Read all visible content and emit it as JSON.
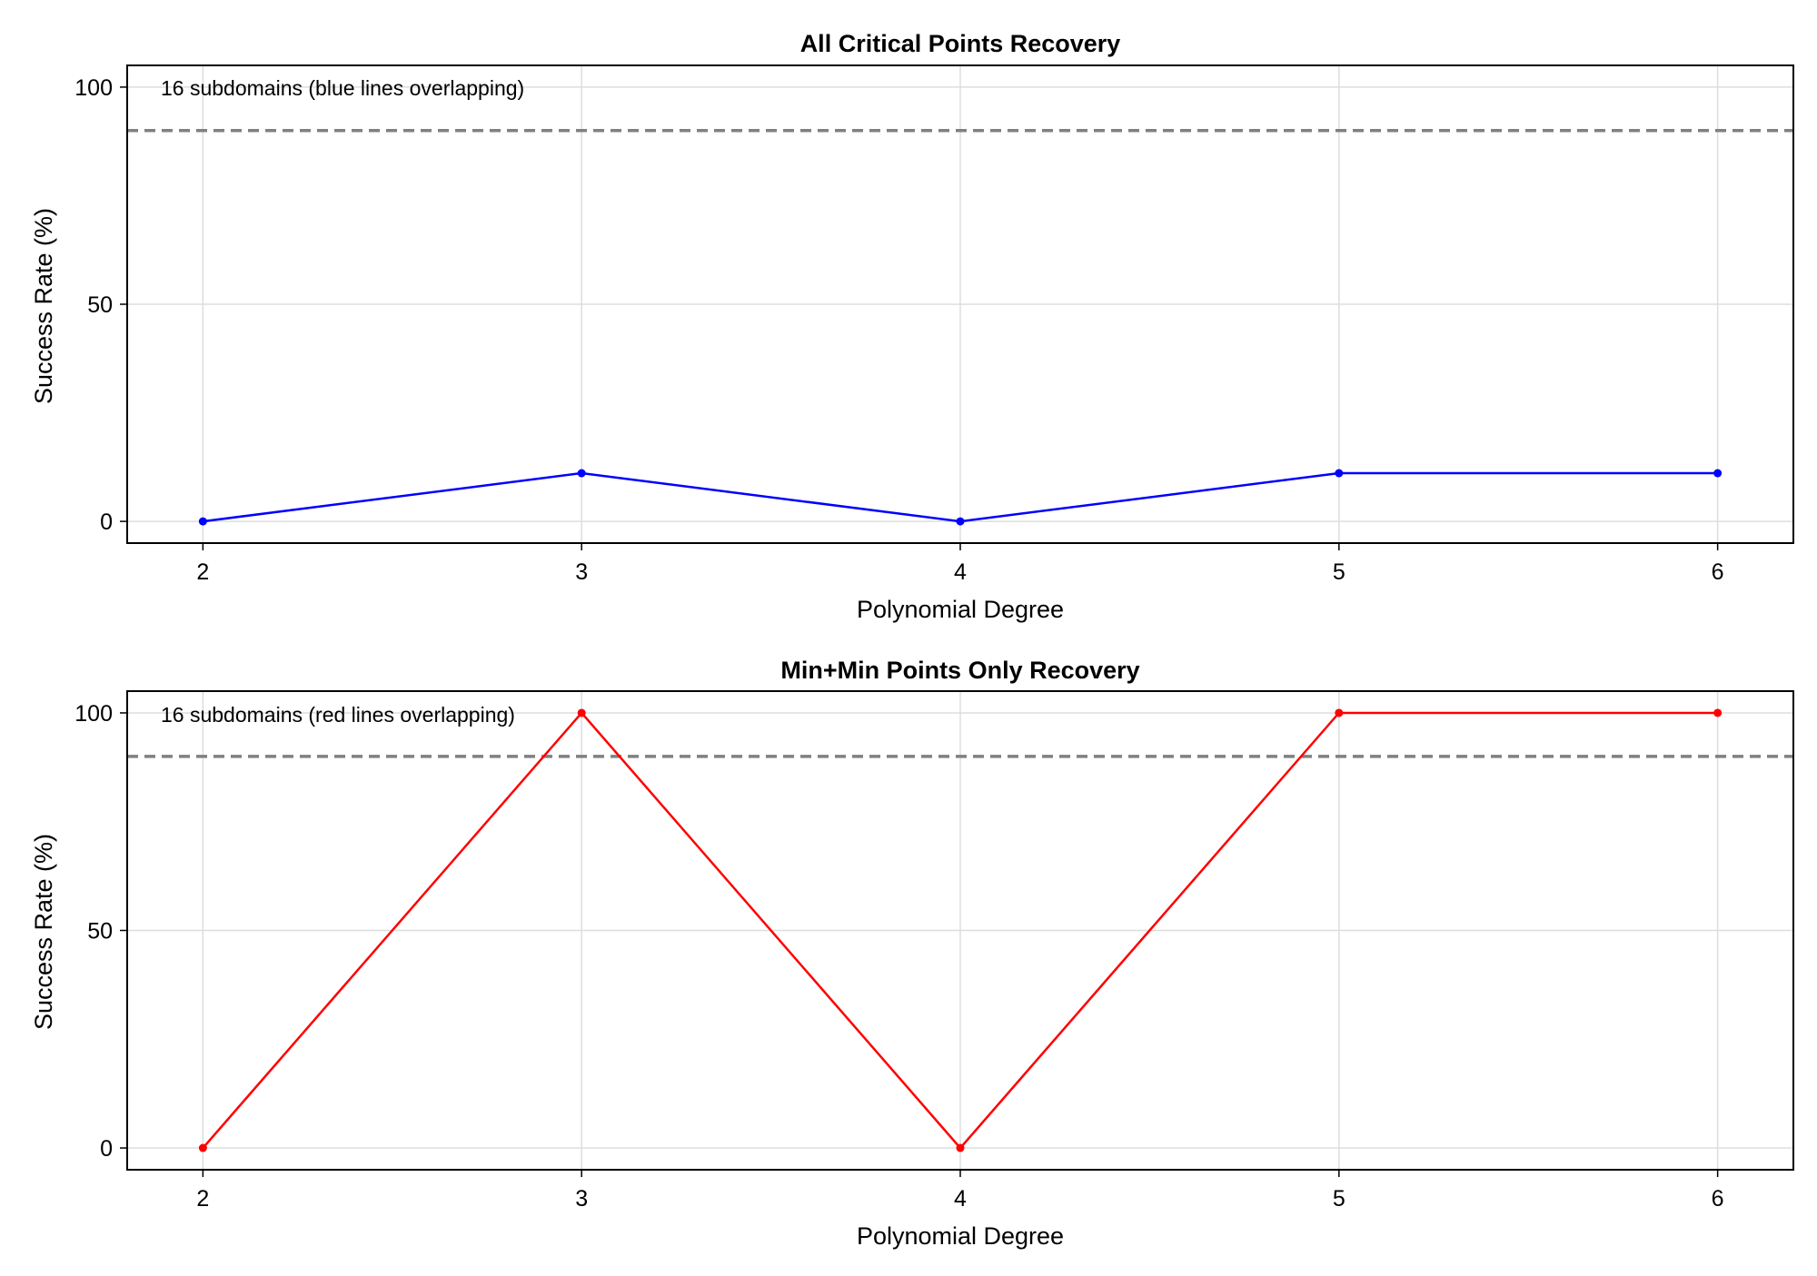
{
  "chart_data": [
    {
      "type": "line",
      "title": "All Critical Points Recovery",
      "xlabel": "Polynomial Degree",
      "ylabel": "Success Rate (%)",
      "x": [
        2,
        3,
        4,
        5,
        6
      ],
      "xticks": [
        "2",
        "3",
        "4",
        "5",
        "6"
      ],
      "yticks": [
        "0",
        "50",
        "100"
      ],
      "xlim": [
        1.8,
        6.2
      ],
      "ylim": [
        -5,
        105
      ],
      "grid": true,
      "series": [
        {
          "values": [
            0,
            11.1,
            0,
            11.1,
            11.1
          ],
          "color": "#0000ff"
        }
      ],
      "reference_line": {
        "y": 90,
        "color": "#808080",
        "style": "dashed"
      },
      "annotation": "16 subdomains (blue lines overlapping)"
    },
    {
      "type": "line",
      "title": "Min+Min Points Only Recovery",
      "xlabel": "Polynomial Degree",
      "ylabel": "Success Rate (%)",
      "x": [
        2,
        3,
        4,
        5,
        6
      ],
      "xticks": [
        "2",
        "3",
        "4",
        "5",
        "6"
      ],
      "yticks": [
        "0",
        "50",
        "100"
      ],
      "xlim": [
        1.8,
        6.2
      ],
      "ylim": [
        -5,
        105
      ],
      "grid": true,
      "series": [
        {
          "values": [
            0,
            100,
            0,
            100,
            100
          ],
          "color": "#ff0000"
        }
      ],
      "reference_line": {
        "y": 90,
        "color": "#808080",
        "style": "dashed"
      },
      "annotation": "16 subdomains (red lines overlapping)"
    }
  ]
}
